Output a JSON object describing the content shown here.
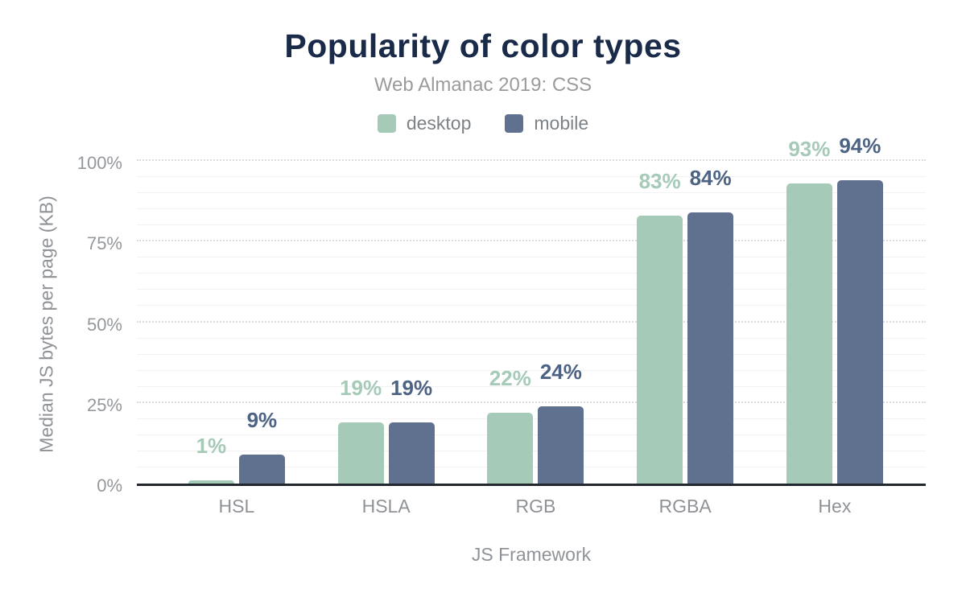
{
  "header": {
    "title": "Popularity of color types",
    "subtitle": "Web Almanac 2019: CSS"
  },
  "legend": {
    "items": [
      {
        "label": "desktop",
        "color": "#a6cab8"
      },
      {
        "label": "mobile",
        "color": "#60718f"
      }
    ]
  },
  "chart_data": {
    "type": "bar",
    "title": "Popularity of color types",
    "subtitle": "Web Almanac 2019: CSS",
    "categories": [
      "HSL",
      "HSLA",
      "RGB",
      "RGBA",
      "Hex"
    ],
    "series": [
      {
        "name": "desktop",
        "color": "#a6cab8",
        "label_color": "#a6cab8",
        "values": [
          1,
          19,
          22,
          83,
          93
        ]
      },
      {
        "name": "mobile",
        "color": "#60718f",
        "label_color": "#4d6384",
        "values": [
          9,
          19,
          24,
          84,
          94
        ]
      }
    ],
    "value_labels": [
      [
        "1%",
        "19%",
        "22%",
        "83%",
        "93%"
      ],
      [
        "9%",
        "19%",
        "24%",
        "84%",
        "94%"
      ]
    ],
    "xlabel": "JS Framework",
    "ylabel": "Median JS bytes per page (KB)",
    "ylim": [
      0,
      100
    ],
    "yticks": [
      0,
      25,
      50,
      75,
      100
    ],
    "ytick_labels": [
      "0%",
      "25%",
      "50%",
      "75%",
      "100%"
    ],
    "minor_grid_step": 5,
    "grid": true,
    "legend_position": "top"
  },
  "colors": {
    "title": "#1a2b4a",
    "subtitle": "#9b9b9b",
    "axis_text": "#8f9397",
    "tick_text": "#94989c",
    "zero_line": "#23272e",
    "major_grid": "#dcdcdd",
    "minor_grid": "#f2f2f3",
    "background": "#ffffff"
  }
}
